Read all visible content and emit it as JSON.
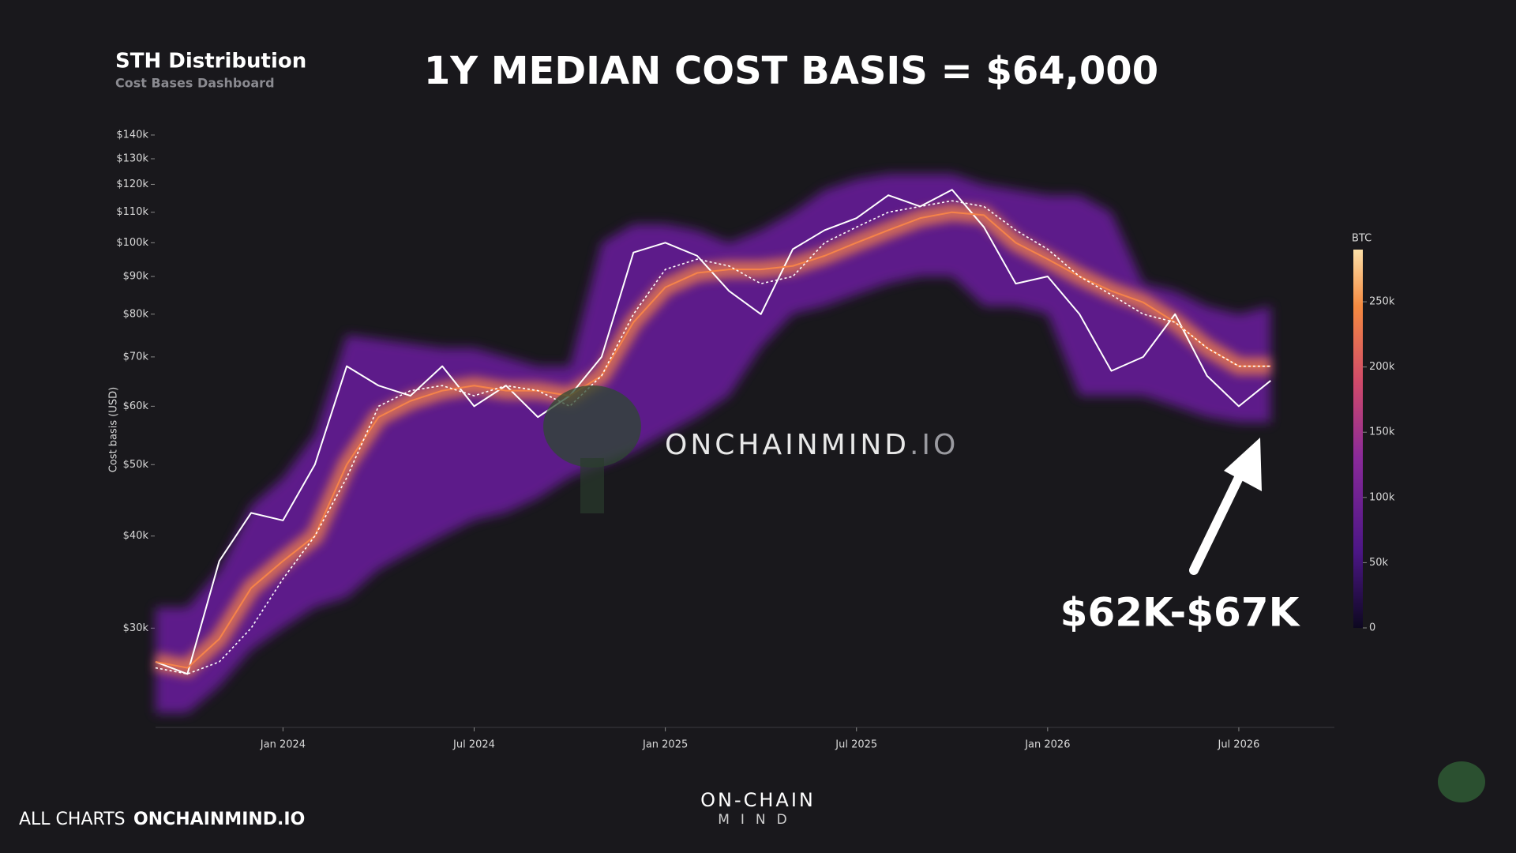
{
  "header": {
    "title": "STH Distribution",
    "subtitle": "Cost Bases Dashboard"
  },
  "chart_data": {
    "type": "line",
    "title": "1Y MEDIAN COST BASIS = $64,000",
    "y_label": "Cost basis (USD)",
    "annotation": "$62K-$67K",
    "log_y": true,
    "x": [
      "2023-09",
      "2023-10",
      "2023-11",
      "2023-12",
      "2024-01",
      "2024-02",
      "2024-03",
      "2024-04",
      "2024-05",
      "2024-06",
      "2024-07",
      "2024-08",
      "2024-09",
      "2024-10",
      "2024-11",
      "2024-12",
      "2025-01",
      "2025-02",
      "2025-03",
      "2025-04",
      "2025-05",
      "2025-06",
      "2025-07",
      "2025-08",
      "2025-09",
      "2025-10",
      "2025-11",
      "2025-12",
      "2026-01",
      "2026-02",
      "2026-03",
      "2026-04",
      "2026-05",
      "2026-06",
      "2026-07",
      "2026-08"
    ],
    "xlim": [
      "2023-09",
      "2026-10"
    ],
    "xticks": [
      {
        "value": "2024-01",
        "label": "Jan 2024"
      },
      {
        "value": "2024-07",
        "label": "Jul 2024"
      },
      {
        "value": "2025-01",
        "label": "Jan 2025"
      },
      {
        "value": "2025-07",
        "label": "Jul 2025"
      },
      {
        "value": "2026-01",
        "label": "Jan 2026"
      },
      {
        "value": "2026-07",
        "label": "Jul 2026"
      }
    ],
    "ylim": [
      22000,
      150000
    ],
    "yticks": [
      {
        "value": 30000,
        "label": "$30k"
      },
      {
        "value": 40000,
        "label": "$40k"
      },
      {
        "value": 50000,
        "label": "$50k"
      },
      {
        "value": 60000,
        "label": "$60k"
      },
      {
        "value": 70000,
        "label": "$70k"
      },
      {
        "value": 80000,
        "label": "$80k"
      },
      {
        "value": 90000,
        "label": "$90k"
      },
      {
        "value": 100000,
        "label": "$100k"
      },
      {
        "value": 110000,
        "label": "$110k"
      },
      {
        "value": 120000,
        "label": "$120k"
      },
      {
        "value": 130000,
        "label": "$130k"
      },
      {
        "value": 140000,
        "label": "$140k"
      }
    ],
    "band": {
      "color": "#6a1f9e",
      "low": [
        23000,
        23000,
        25000,
        28000,
        30000,
        32000,
        33000,
        36000,
        38000,
        40000,
        42000,
        43000,
        45000,
        48000,
        50000,
        52000,
        55000,
        58000,
        62000,
        72000,
        80000,
        82000,
        85000,
        88000,
        90000,
        90000,
        82000,
        82000,
        80000,
        62000,
        62000,
        62000,
        60000,
        58000,
        57000,
        57000
      ],
      "high": [
        32000,
        32000,
        36000,
        44000,
        48000,
        55000,
        75000,
        74000,
        73000,
        72000,
        72000,
        70000,
        68000,
        68000,
        100000,
        106000,
        106000,
        104000,
        100000,
        104000,
        110000,
        118000,
        122000,
        124000,
        124000,
        124000,
        120000,
        118000,
        116000,
        116000,
        110000,
        88000,
        86000,
        82000,
        80000,
        82000
      ]
    },
    "series": [
      {
        "color": "#ffffff",
        "dash": false,
        "values": [
          27000,
          26000,
          37000,
          43000,
          42000,
          50000,
          68000,
          64000,
          62000,
          68000,
          60000,
          64000,
          58000,
          62000,
          70000,
          97000,
          100000,
          96000,
          86000,
          80000,
          98000,
          104000,
          108000,
          116000,
          112000,
          118000,
          105000,
          88000,
          90000,
          80000,
          67000,
          70000,
          80000,
          66000,
          60000,
          65000
        ]
      },
      {
        "color": "#f5834a",
        "dash": false,
        "values": [
          27000,
          26500,
          29000,
          34000,
          37000,
          40000,
          50000,
          58000,
          61000,
          63000,
          64000,
          63000,
          63000,
          62000,
          66000,
          78000,
          87000,
          91000,
          92000,
          92000,
          93000,
          96000,
          100000,
          104000,
          108000,
          110000,
          109000,
          100000,
          95000,
          90000,
          86000,
          83000,
          78000,
          72000,
          68000,
          68000
        ]
      },
      {
        "color": "#ffffff",
        "dash": true,
        "values": [
          26500,
          26000,
          27000,
          30000,
          35000,
          40000,
          48000,
          60000,
          63000,
          64000,
          62000,
          64000,
          63000,
          60000,
          66000,
          80000,
          92000,
          95000,
          93000,
          88000,
          90000,
          100000,
          105000,
          110000,
          112000,
          114000,
          112000,
          104000,
          98000,
          90000,
          85000,
          80000,
          78000,
          72000,
          68000,
          68000
        ]
      }
    ],
    "colorbar": {
      "label": "BTC",
      "lim": [
        0,
        290000
      ],
      "ticks": [
        0,
        {
          "value": 50000,
          "label": "50k"
        },
        {
          "value": 100000,
          "label": "100k"
        },
        {
          "value": 150000,
          "label": "150k"
        },
        {
          "value": 200000,
          "label": "200k"
        },
        {
          "value": 250000,
          "label": "250k"
        }
      ]
    }
  },
  "watermark": {
    "name": "ONCHAINMIND",
    "suffix": ".IO"
  },
  "footer": {
    "link_label": "ALL CHARTS",
    "link": "ONCHAINMIND.IO",
    "logo_top": "ON-CHAIN",
    "logo_bottom": "MIND"
  }
}
